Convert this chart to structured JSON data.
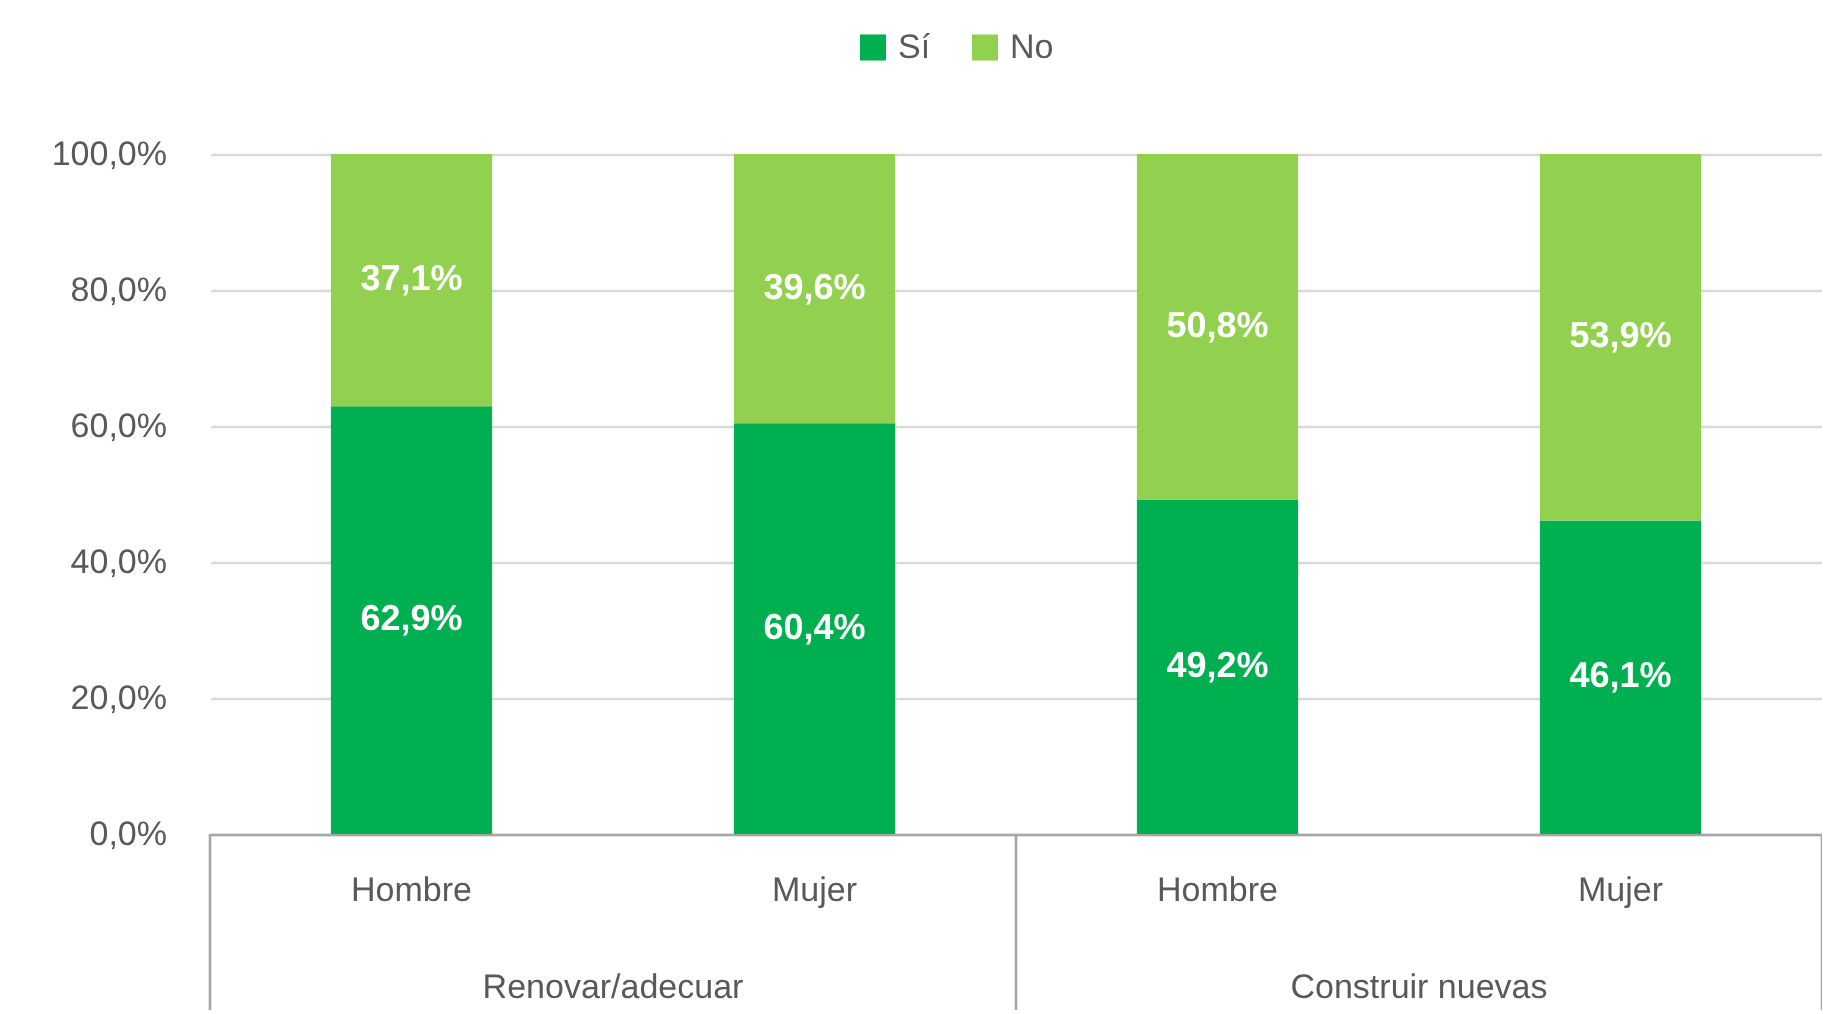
{
  "chart_data": {
    "type": "bar",
    "stacked": true,
    "categories": [
      "Hombre",
      "Mujer",
      "Hombre",
      "Mujer"
    ],
    "series": [
      {
        "name": "Sí",
        "color": "#00b050",
        "values": [
          62.9,
          60.4,
          49.2,
          46.1
        ],
        "value_labels": [
          "62,9%",
          "60,4%",
          "49,2%",
          "46,1%"
        ]
      },
      {
        "name": "No",
        "color": "#92d050",
        "values": [
          37.1,
          39.6,
          50.8,
          53.9
        ],
        "value_labels": [
          "37,1%",
          "39,6%",
          "50,8%",
          "53,9%"
        ]
      }
    ],
    "ylim": [
      0,
      100
    ],
    "yticks": [
      {
        "value": 0,
        "label": "0,0%"
      },
      {
        "value": 20,
        "label": "20,0%"
      },
      {
        "value": 40,
        "label": "40,0%"
      },
      {
        "value": 60,
        "label": "60,0%"
      },
      {
        "value": 80,
        "label": "80,0%"
      },
      {
        "value": 100,
        "label": "100,0%"
      }
    ],
    "grid": "y",
    "legend": "top",
    "annotations": [
      "Renovar/adecuar",
      "Construir nuevas"
    ]
  }
}
